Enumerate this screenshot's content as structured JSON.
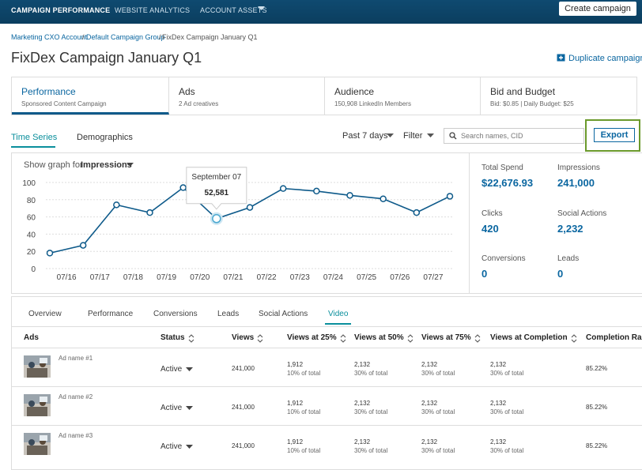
{
  "nav": {
    "items": [
      "CAMPAIGN PERFORMANCE",
      "WEBSITE ANALYTICS",
      "ACCOUNT ASSETS"
    ],
    "button": "Create campaign"
  },
  "breadcrumb": [
    "Marketing CXO Account",
    "Default Campaign Group",
    "FixDex Campaign January Q1"
  ],
  "header": {
    "title": "FixDex Campaign January Q1",
    "action": "Duplicate campaign"
  },
  "tabs": [
    {
      "title": "Performance",
      "subtitle": "Sponsored Content Campaign"
    },
    {
      "title": "Ads",
      "subtitle": "2 Ad creatives"
    },
    {
      "title": "Audience",
      "subtitle": "150,908 LinkedIn Members"
    },
    {
      "title": "Bid and Budget",
      "subtitle": "Bid: $0.85  |  Daily Budget: $25"
    }
  ],
  "toolbar": {
    "views": [
      "Time Series",
      "Demographics"
    ],
    "range": "Past 7 days",
    "filter": "Filter",
    "search": "Search names, CID",
    "export": "Export"
  },
  "chart_data": {
    "type": "line",
    "selector_label": "Show graph for",
    "metric": "Impressions",
    "categories": [
      "07/16",
      "07/17",
      "07/18",
      "07/19",
      "07/20",
      "07/21",
      "07/22",
      "07/23",
      "07/24",
      "07/25",
      "07/26",
      "07/27",
      null
    ],
    "values": [
      18,
      27,
      74,
      65,
      94,
      58,
      71,
      93,
      90,
      85,
      81,
      65,
      84
    ],
    "color": "#0e5a8a",
    "ylim": [
      0,
      100
    ],
    "yticks": [
      0,
      20,
      40,
      60,
      80,
      100
    ],
    "grid": true,
    "tooltip": {
      "date": "September 07",
      "value": "52,581"
    }
  },
  "stats": [
    {
      "label": "Total Spend",
      "value": "$22,676.93"
    },
    {
      "label": "Impressions",
      "value": "241,000"
    },
    {
      "label": "Clicks",
      "value": "420"
    },
    {
      "label": "Social Actions",
      "value": "2,232"
    },
    {
      "label": "Conversions",
      "value": "0"
    },
    {
      "label": "Leads",
      "value": "0"
    }
  ],
  "table": {
    "tabs": [
      "Overview",
      "Performance",
      "Conversions",
      "Leads",
      "Social Actions",
      "Video"
    ],
    "columns": [
      "Ads",
      "Status",
      "Views",
      "Views at 25%",
      "Views at 50%",
      "Views at 75%",
      "Views at Completion",
      "Completion Ra"
    ],
    "rows": [
      {
        "name": "Ad name #1",
        "status": "Active",
        "views": "241,000",
        "cells": [
          [
            "1,912",
            "10% of total"
          ],
          [
            "2,132",
            "30% of total"
          ],
          [
            "2,132",
            "30% of total"
          ],
          [
            "2,132",
            "30% of total"
          ]
        ],
        "rate": "85.22%"
      },
      {
        "name": "Ad name #2",
        "status": "Active",
        "views": "241,000",
        "cells": [
          [
            "1,912",
            "10% of total"
          ],
          [
            "2,132",
            "30% of total"
          ],
          [
            "2,132",
            "30% of total"
          ],
          [
            "2,132",
            "30% of total"
          ]
        ],
        "rate": "85.22%"
      },
      {
        "name": "Ad name #3",
        "status": "Active",
        "views": "241,000",
        "cells": [
          [
            "1,912",
            "10% of total"
          ],
          [
            "2,132",
            "30% of total"
          ],
          [
            "2,132",
            "30% of total"
          ],
          [
            "2,132",
            "30% of total"
          ]
        ],
        "rate": "85.22%"
      }
    ]
  }
}
